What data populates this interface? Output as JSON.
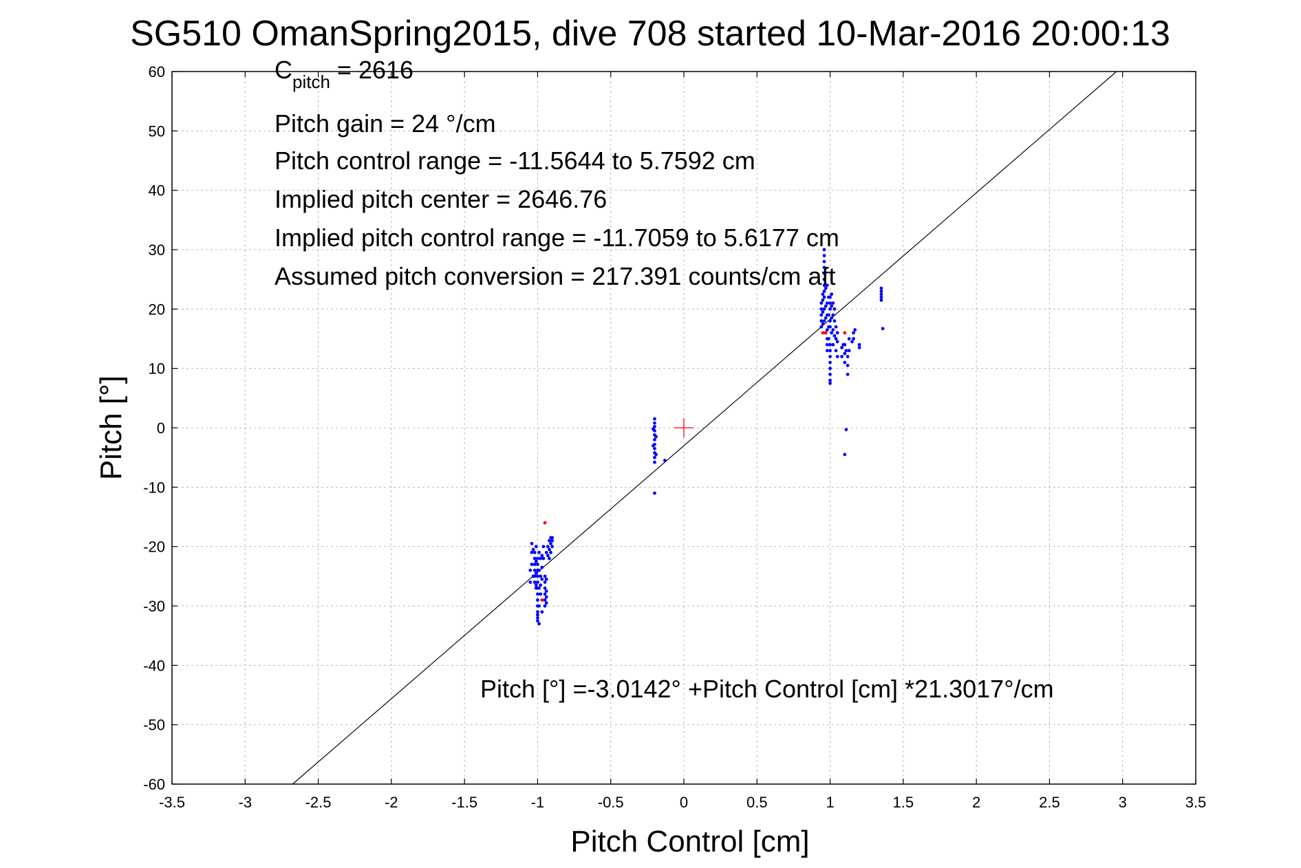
{
  "chart_data": {
    "type": "scatter",
    "title": "SG510 OmanSpring2015, dive 708 started 10-Mar-2016 20:00:13",
    "xlabel": "Pitch Control [cm]",
    "ylabel": "Pitch [°]",
    "xlim": [
      -3.5,
      3.5
    ],
    "ylim": [
      -60,
      60
    ],
    "xticks": [
      -3.5,
      -3,
      -2.5,
      -2,
      -1.5,
      -1,
      -0.5,
      0,
      0.5,
      1,
      1.5,
      2,
      2.5,
      3,
      3.5
    ],
    "xtick_labels": [
      "-3.5",
      "-3",
      "-2.5",
      "-2",
      "-1.5",
      "-1",
      "-0.5",
      "0",
      "0.5",
      "1",
      "1.5",
      "2",
      "2.5",
      "3",
      "3.5"
    ],
    "yticks": [
      -60,
      -50,
      -40,
      -30,
      -20,
      -10,
      0,
      10,
      20,
      30,
      40,
      50,
      60
    ],
    "ytick_labels": [
      "-60",
      "-50",
      "-40",
      "-30",
      "-20",
      "-10",
      "0",
      "10",
      "20",
      "30",
      "40",
      "50",
      "60"
    ],
    "grid": true,
    "annotations": {
      "c_pitch_main": "C",
      "c_pitch_sub": "pitch",
      "c_pitch_rest": " = 2616",
      "gain": "Pitch gain = 24 °/cm",
      "range": "Pitch control range = -11.5644 to 5.7592 cm",
      "center": "Implied pitch center = 2646.76",
      "implied_range": "Implied pitch control range = -11.7059 to 5.6177 cm",
      "conversion": "Assumed pitch conversion = 217.391 counts/cm aft",
      "fit": "Pitch [°] =-3.0142° +Pitch Control [cm] *21.3017°/cm"
    },
    "fit_line": {
      "intercept": -3.0142,
      "slope": 21.3017,
      "color": "#000000"
    },
    "center_marker": {
      "x": 0,
      "y": 0,
      "color": "#ff0000",
      "shape": "plus"
    },
    "series": [
      {
        "color": "#0000ff",
        "marker": "dot",
        "points": [
          [
            -1.02,
            -21
          ],
          [
            -1.02,
            -22
          ],
          [
            -1.02,
            -23
          ],
          [
            -1.02,
            -24
          ],
          [
            -1.02,
            -25
          ],
          [
            -1.02,
            -26
          ],
          [
            -1.01,
            -20
          ],
          [
            -1.01,
            -22.5
          ],
          [
            -1.01,
            -24.5
          ],
          [
            -1.01,
            -26.5
          ],
          [
            -1.01,
            -27
          ],
          [
            -1.0,
            -22
          ],
          [
            -1.0,
            -23
          ],
          [
            -1.0,
            -24
          ],
          [
            -1.0,
            -25
          ],
          [
            -1.0,
            -26
          ],
          [
            -1.0,
            -27
          ],
          [
            -1.0,
            -28
          ],
          [
            -1.0,
            -29
          ],
          [
            -1.0,
            -30
          ],
          [
            -1.0,
            -31
          ],
          [
            -1.0,
            -32
          ],
          [
            -1.0,
            -32.5
          ],
          [
            -1.0,
            -31.5
          ],
          [
            -0.99,
            -21
          ],
          [
            -0.99,
            -24
          ],
          [
            -0.99,
            -27
          ],
          [
            -0.99,
            -30
          ],
          [
            -0.99,
            -33
          ],
          [
            -0.98,
            -22
          ],
          [
            -0.98,
            -25
          ],
          [
            -0.98,
            -26.5
          ],
          [
            -0.98,
            -28
          ],
          [
            -0.97,
            -21.5
          ],
          [
            -0.97,
            -23.5
          ],
          [
            -0.97,
            -25.5
          ],
          [
            -0.97,
            -31
          ],
          [
            -1.04,
            -19.5
          ],
          [
            -1.04,
            -21
          ],
          [
            -1.04,
            -23
          ],
          [
            -1.05,
            -26
          ],
          [
            -1.05,
            -24
          ],
          [
            -1.03,
            -20.5
          ],
          [
            -1.03,
            -25
          ],
          [
            -0.96,
            -20
          ],
          [
            -0.96,
            -22
          ],
          [
            -0.95,
            -25
          ],
          [
            -0.95,
            -26
          ],
          [
            -0.95,
            -27
          ],
          [
            -0.95,
            -28
          ],
          [
            -0.95,
            -29
          ],
          [
            -0.95,
            -30
          ],
          [
            -0.94,
            -25.5
          ],
          [
            -0.94,
            -27.5
          ],
          [
            -0.94,
            -29.5
          ],
          [
            -0.94,
            -28.5
          ],
          [
            -0.94,
            -21
          ],
          [
            -0.93,
            -20
          ],
          [
            -0.93,
            -21.5
          ],
          [
            -0.92,
            -19
          ],
          [
            -0.92,
            -20.5
          ],
          [
            -0.92,
            -22
          ],
          [
            -0.91,
            -18.5
          ],
          [
            -0.91,
            -19.5
          ],
          [
            -0.91,
            -21
          ],
          [
            -0.9,
            -19
          ],
          [
            -0.9,
            -20
          ],
          [
            -0.9,
            -18.5
          ],
          [
            -0.2,
            1.5
          ],
          [
            -0.2,
            0.8
          ],
          [
            -0.2,
            0.2
          ],
          [
            -0.2,
            -0.5
          ],
          [
            -0.2,
            -1.2
          ],
          [
            -0.2,
            -2
          ],
          [
            -0.2,
            -2.8
          ],
          [
            -0.2,
            -3.5
          ],
          [
            -0.2,
            -4.2
          ],
          [
            -0.2,
            -5
          ],
          [
            -0.2,
            -5.8
          ],
          [
            -0.21,
            -0.2
          ],
          [
            -0.21,
            -3
          ],
          [
            -0.19,
            -1.5
          ],
          [
            -0.19,
            -4.5
          ],
          [
            -0.2,
            -11
          ],
          [
            -0.13,
            -5.5
          ],
          [
            0.94,
            17
          ],
          [
            0.94,
            18
          ],
          [
            0.94,
            19
          ],
          [
            0.94,
            20
          ],
          [
            0.94,
            21
          ],
          [
            0.95,
            17.5
          ],
          [
            0.95,
            19.5
          ],
          [
            0.95,
            21.5
          ],
          [
            0.95,
            22.5
          ],
          [
            0.96,
            18
          ],
          [
            0.96,
            20
          ],
          [
            0.96,
            22
          ],
          [
            0.96,
            23
          ],
          [
            0.96,
            24
          ],
          [
            0.96,
            25
          ],
          [
            0.96,
            26
          ],
          [
            0.96,
            27
          ],
          [
            0.96,
            28
          ],
          [
            0.96,
            29
          ],
          [
            0.96,
            30
          ],
          [
            0.97,
            16
          ],
          [
            0.97,
            18.5
          ],
          [
            0.97,
            20.5
          ],
          [
            0.97,
            23.5
          ],
          [
            0.98,
            13
          ],
          [
            0.98,
            14
          ],
          [
            0.98,
            15
          ],
          [
            0.98,
            16.5
          ],
          [
            0.98,
            19
          ],
          [
            0.98,
            21
          ],
          [
            0.98,
            24
          ],
          [
            0.99,
            15
          ],
          [
            0.99,
            17
          ],
          [
            0.99,
            19
          ],
          [
            0.99,
            22
          ],
          [
            1.0,
            7.5
          ],
          [
            1.0,
            8
          ],
          [
            1.0,
            9
          ],
          [
            1.0,
            10
          ],
          [
            1.0,
            11
          ],
          [
            1.0,
            12
          ],
          [
            1.0,
            13
          ],
          [
            1.0,
            14
          ],
          [
            1.0,
            17
          ],
          [
            1.0,
            18
          ],
          [
            1.0,
            20
          ],
          [
            1.0,
            21
          ],
          [
            1.0,
            22
          ],
          [
            1.01,
            16
          ],
          [
            1.01,
            18.5
          ],
          [
            1.01,
            20.5
          ],
          [
            1.01,
            22.5
          ],
          [
            1.02,
            14
          ],
          [
            1.02,
            16.5
          ],
          [
            1.02,
            19
          ],
          [
            1.02,
            21
          ],
          [
            1.03,
            15.5
          ],
          [
            1.03,
            18
          ],
          [
            1.03,
            20
          ],
          [
            1.04,
            13
          ],
          [
            1.04,
            15
          ],
          [
            1.04,
            17
          ],
          [
            1.05,
            12
          ],
          [
            1.05,
            14.5
          ],
          [
            1.05,
            16
          ],
          [
            1.08,
            12
          ],
          [
            1.08,
            13.5
          ],
          [
            1.09,
            14
          ],
          [
            1.1,
            11
          ],
          [
            1.1,
            12.5
          ],
          [
            1.1,
            14
          ],
          [
            1.11,
            13
          ],
          [
            1.12,
            9
          ],
          [
            1.12,
            10.5
          ],
          [
            1.12,
            12
          ],
          [
            1.13,
            13
          ],
          [
            1.13,
            15
          ],
          [
            1.15,
            14.5
          ],
          [
            1.16,
            15
          ],
          [
            1.16,
            16
          ],
          [
            1.17,
            16.5
          ],
          [
            1.2,
            14
          ],
          [
            1.2,
            13.5
          ],
          [
            1.11,
            -0.3
          ],
          [
            1.1,
            -4.5
          ],
          [
            1.35,
            22
          ],
          [
            1.35,
            22.5
          ],
          [
            1.35,
            23
          ],
          [
            1.35,
            23.5
          ],
          [
            1.35,
            21.5
          ],
          [
            1.36,
            16.7
          ]
        ]
      },
      {
        "color": "#ff0000",
        "marker": "dot",
        "points": [
          [
            -0.95,
            -16
          ],
          [
            0.97,
            16
          ],
          [
            0.95,
            16
          ],
          [
            1.1,
            16
          ],
          [
            -0.97,
            -29
          ]
        ]
      }
    ]
  }
}
